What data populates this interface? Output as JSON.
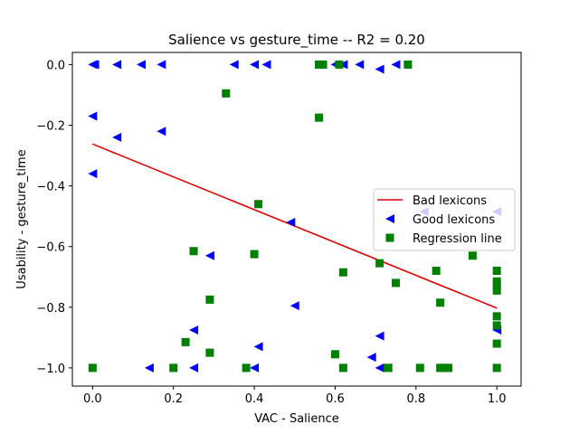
{
  "chart_data": {
    "type": "scatter",
    "title": "Salience  vs  gesture_time -- R2 = 0.20",
    "xlabel": "VAC - Salience",
    "ylabel": "Usability - gesture_time",
    "xlim": [
      -0.05,
      1.06
    ],
    "ylim": [
      -1.06,
      0.04
    ],
    "xticks": [
      "0.0",
      "0.2",
      "0.4",
      "0.6",
      "0.8",
      "1.0"
    ],
    "yticks": [
      "0.0",
      "−0.2",
      "−0.4",
      "−0.6",
      "−0.8",
      "−1.0"
    ],
    "legend_position": "center-right",
    "legend": [
      "Bad lexicons",
      "Good lexicons",
      "Regression line"
    ],
    "series": [
      {
        "name": "Bad lexicons",
        "kind": "line",
        "color": "#e00000",
        "points": [
          [
            0.0,
            -0.262
          ],
          [
            1.0,
            -0.803
          ]
        ]
      },
      {
        "name": "Good lexicons",
        "kind": "triangle-left",
        "color": "#0000ff",
        "points": [
          [
            0.0,
            0.0
          ],
          [
            0.005,
            0.0
          ],
          [
            0.06,
            0.0
          ],
          [
            0.12,
            0.0
          ],
          [
            0.17,
            0.0
          ],
          [
            0.35,
            0.0
          ],
          [
            0.4,
            0.0
          ],
          [
            0.43,
            0.0
          ],
          [
            0.6,
            0.0
          ],
          [
            0.62,
            0.0
          ],
          [
            0.66,
            0.0
          ],
          [
            0.71,
            -0.015
          ],
          [
            0.75,
            0.0
          ],
          [
            0.0,
            -0.17
          ],
          [
            0.06,
            -0.24
          ],
          [
            0.17,
            -0.22
          ],
          [
            0.0,
            -0.36
          ],
          [
            0.49,
            -0.52
          ],
          [
            0.29,
            -0.63
          ],
          [
            0.5,
            -0.795
          ],
          [
            0.25,
            -0.875
          ],
          [
            0.41,
            -0.93
          ],
          [
            0.71,
            -0.895
          ],
          [
            0.69,
            -0.965
          ],
          [
            0.14,
            -1.0
          ],
          [
            0.25,
            -1.0
          ],
          [
            0.4,
            -1.0
          ],
          [
            0.71,
            -1.0
          ],
          [
            0.73,
            -1.0
          ],
          [
            0.82,
            -0.485
          ],
          [
            1.0,
            -0.485
          ],
          [
            1.0,
            -0.875
          ]
        ]
      },
      {
        "name": "Regression line",
        "kind": "square",
        "color": "#008000",
        "points": [
          [
            0.56,
            0.0
          ],
          [
            0.57,
            0.0
          ],
          [
            0.61,
            0.0
          ],
          [
            0.78,
            0.0
          ],
          [
            0.33,
            -0.095
          ],
          [
            0.56,
            -0.175
          ],
          [
            0.41,
            -0.46
          ],
          [
            0.25,
            -0.615
          ],
          [
            0.4,
            -0.625
          ],
          [
            0.62,
            -0.685
          ],
          [
            0.71,
            -0.655
          ],
          [
            0.75,
            -0.72
          ],
          [
            0.85,
            -0.68
          ],
          [
            0.86,
            -0.785
          ],
          [
            0.94,
            -0.63
          ],
          [
            1.0,
            -0.68
          ],
          [
            1.0,
            -0.715
          ],
          [
            1.0,
            -0.73
          ],
          [
            1.0,
            -0.745
          ],
          [
            1.0,
            -0.83
          ],
          [
            1.0,
            -0.86
          ],
          [
            1.0,
            -0.92
          ],
          [
            0.29,
            -0.775
          ],
          [
            0.23,
            -0.915
          ],
          [
            0.29,
            -0.95
          ],
          [
            0.6,
            -0.955
          ],
          [
            0.0,
            -1.0
          ],
          [
            0.2,
            -1.0
          ],
          [
            0.38,
            -1.0
          ],
          [
            0.62,
            -1.0
          ],
          [
            0.73,
            -1.0
          ],
          [
            0.81,
            -1.0
          ],
          [
            0.86,
            -1.0
          ],
          [
            0.87,
            -1.0
          ],
          [
            0.88,
            -1.0
          ],
          [
            1.0,
            -1.0
          ]
        ]
      }
    ]
  }
}
